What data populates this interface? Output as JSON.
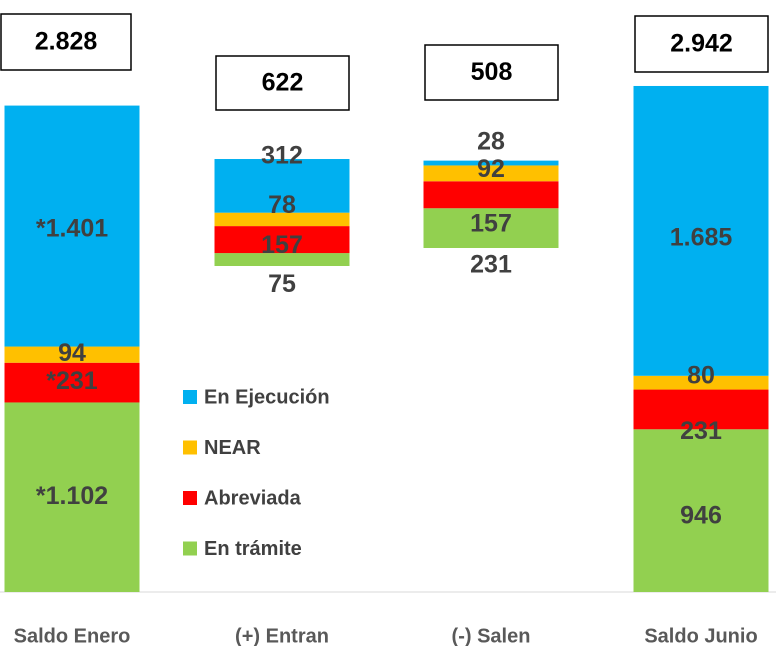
{
  "chart_data": {
    "type": "bar",
    "stacked": true,
    "categories": [
      "Saldo Enero",
      "(+) Entran",
      "(-) Salen",
      "Saldo Junio"
    ],
    "series": [
      {
        "name": "En trámite",
        "color": "#92d050",
        "values": [
          1102,
          75,
          231,
          946
        ],
        "value_labels": [
          "*1.102",
          "75",
          "231",
          "946"
        ]
      },
      {
        "name": "Abreviada",
        "color": "#ff0000",
        "values": [
          231,
          157,
          157,
          231
        ],
        "value_labels": [
          "*231",
          "157",
          "157",
          "231"
        ]
      },
      {
        "name": "NEAR",
        "color": "#ffc000",
        "values": [
          94,
          78,
          92,
          80
        ]
      },
      {
        "name": "En Ejecución",
        "color": "#00b0f0",
        "values": [
          1401,
          312,
          28,
          1685
        ],
        "value_labels": [
          "*1.401",
          "312",
          "28",
          "1.685"
        ]
      }
    ],
    "totals": {
      "values": [
        2828,
        622,
        508,
        2942
      ],
      "value_labels": [
        "2.828",
        "622",
        "508",
        "2.942"
      ]
    },
    "ylim": [
      0,
      3000
    ],
    "legend": "center"
  }
}
